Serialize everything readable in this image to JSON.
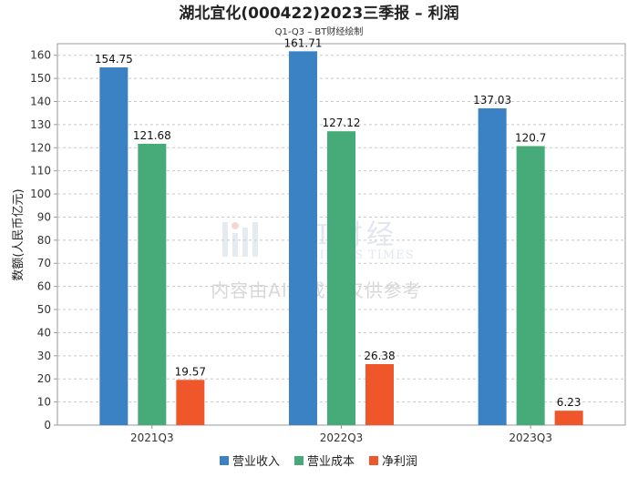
{
  "chart_data": {
    "type": "bar",
    "title": "湖北宜化(000422)2023三季报 – 利润",
    "subtitle": "Q1-Q3 – BT财经绘制",
    "xlabel": "",
    "ylabel": "数额(人民币亿元)",
    "categories": [
      "2021Q3",
      "2022Q3",
      "2023Q3"
    ],
    "series": [
      {
        "name": "营业收入",
        "values": [
          154.75,
          161.71,
          137.03
        ],
        "color": "#3a82c4"
      },
      {
        "name": "营业成本",
        "values": [
          121.68,
          127.12,
          120.7
        ],
        "color": "#46ab78"
      },
      {
        "name": "净利润",
        "values": [
          19.57,
          26.38,
          6.23
        ],
        "color": "#ef5629"
      }
    ],
    "data_labels": [
      [
        "154.75",
        "121.68",
        "19.57"
      ],
      [
        "161.71",
        "127.12",
        "26.38"
      ],
      [
        "137.03",
        "120.7",
        "6.23"
      ]
    ],
    "yticks": [
      0,
      10,
      20,
      30,
      40,
      50,
      60,
      70,
      80,
      90,
      100,
      110,
      120,
      130,
      140,
      150,
      160
    ],
    "ylim": [
      0,
      165
    ],
    "grid": true,
    "legend_position": "bottom-center"
  },
  "watermark": {
    "brand": "BT财经",
    "brand_en": "BUSINESS TIMES",
    "notice": "内容由AI生成，仅供参考"
  }
}
